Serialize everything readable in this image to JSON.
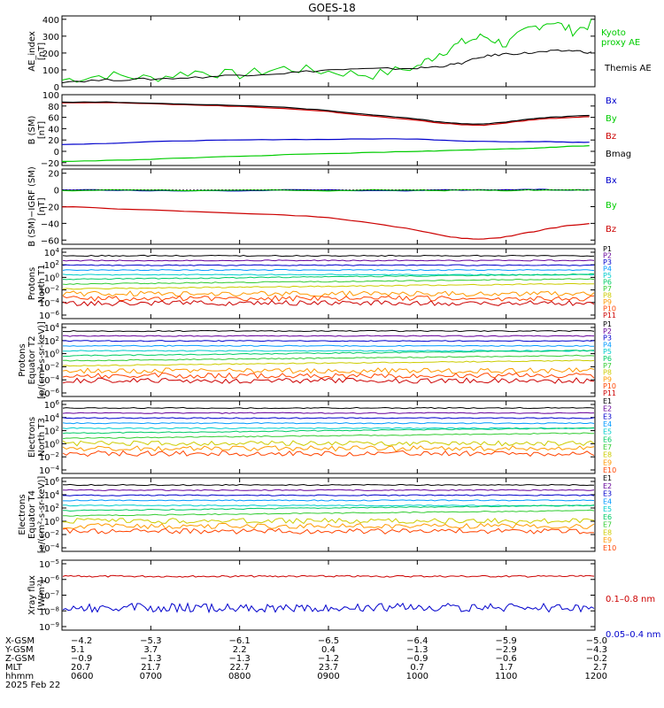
{
  "title": "GOES-18",
  "colors": {
    "black": "#000000",
    "red": "#cc0000",
    "green": "#00cc00",
    "blue": "#0000cc",
    "P": [
      "#000000",
      "#660099",
      "#0000cc",
      "#0099ff",
      "#00cccc",
      "#00cc66",
      "#33cc33",
      "#cccc00",
      "#ff9900",
      "#ff4400",
      "#cc0000"
    ]
  },
  "chart_data": [
    {
      "type": "line",
      "ylabel": "AE_index [nT]",
      "yticks": [
        "400",
        "300",
        "200",
        "100",
        "0"
      ],
      "ylim": [
        0,
        420
      ],
      "series": [
        {
          "name": "Kyoto proxy AE",
          "color": "green",
          "x": [
            "0600",
            "0630",
            "0700",
            "0730",
            "0800",
            "0830",
            "0900",
            "0930",
            "1000",
            "1015",
            "1030",
            "1045",
            "1100",
            "1115",
            "1130",
            "1145",
            "1200"
          ],
          "y": [
            40,
            70,
            50,
            90,
            70,
            110,
            90,
            70,
            120,
            200,
            260,
            300,
            250,
            340,
            390,
            330,
            380
          ]
        },
        {
          "name": "Themis AE",
          "color": "black",
          "x": [
            "0600",
            "0630",
            "0700",
            "0730",
            "0800",
            "0830",
            "0900",
            "0930",
            "1000",
            "1015",
            "1030",
            "1045",
            "1100",
            "1115",
            "1130",
            "1145",
            "1200"
          ],
          "y": [
            30,
            40,
            45,
            55,
            70,
            80,
            100,
            105,
            110,
            120,
            140,
            180,
            195,
            200,
            210,
            215,
            200
          ]
        }
      ]
    },
    {
      "type": "line",
      "ylabel": "B (SM) [nT]",
      "yticks": [
        "100",
        "80",
        "60",
        "40",
        "20",
        "0",
        "−20"
      ],
      "ylim": [
        -25,
        100
      ],
      "series": [
        {
          "name": "Bx",
          "color": "blue",
          "y": [
            12,
            14,
            17,
            19,
            20,
            21,
            21,
            22,
            22,
            20,
            18,
            18,
            17,
            17,
            17,
            16,
            16
          ]
        },
        {
          "name": "By",
          "color": "green",
          "y": [
            -18,
            -16,
            -14,
            -11,
            -9,
            -6,
            -4,
            -2,
            0,
            1,
            2,
            3,
            4,
            5,
            7,
            9,
            10
          ]
        },
        {
          "name": "Bz",
          "color": "red",
          "y": [
            86,
            86,
            84,
            82,
            79,
            76,
            70,
            62,
            55,
            50,
            47,
            46,
            50,
            55,
            58,
            60,
            62
          ]
        },
        {
          "name": "Bmag",
          "color": "black",
          "y": [
            87,
            87,
            85,
            83,
            81,
            78,
            72,
            64,
            57,
            52,
            49,
            48,
            52,
            57,
            60,
            62,
            64
          ]
        }
      ]
    },
    {
      "type": "line",
      "ylabel": "B (SM)−IGRF (SM) [nT]",
      "yticks": [
        "20",
        "0",
        "−20",
        "−40",
        "−60"
      ],
      "ylim": [
        -65,
        25
      ],
      "series": [
        {
          "name": "Bx",
          "color": "blue",
          "y": [
            0,
            0,
            -1,
            -1,
            -1,
            0,
            0,
            -1,
            -1,
            0,
            0,
            0,
            0,
            1,
            0,
            0,
            0
          ]
        },
        {
          "name": "By",
          "color": "green",
          "y": [
            -1,
            0,
            0,
            -1,
            0,
            0,
            -1,
            0,
            0,
            -1,
            0,
            0,
            -1,
            0,
            0,
            0,
            0
          ]
        },
        {
          "name": "Bz",
          "color": "red",
          "y": [
            -20,
            -22,
            -24,
            -26,
            -28,
            -30,
            -33,
            -40,
            -48,
            -54,
            -58,
            -59,
            -56,
            -51,
            -46,
            -42,
            -40
          ]
        }
      ]
    },
    {
      "type": "line",
      "log": true,
      "ylabel": "Protons North T1",
      "yticks": [
        "10^4",
        "10^2",
        "10^0",
        "10^-2",
        "10^-4",
        "10^-6"
      ],
      "series_labels": [
        "P1",
        "P2",
        "P3",
        "P4",
        "P5",
        "P6",
        "P7",
        "P8",
        "P9",
        "P10",
        "P11"
      ]
    },
    {
      "type": "line",
      "log": true,
      "ylabel": "Protons Equator T2 [p/(cm²-s-sr-keV)]",
      "yticks": [
        "10^4",
        "10^2",
        "10^0",
        "10^-2",
        "10^-4",
        "10^-6"
      ],
      "series_labels": [
        "P1",
        "P2",
        "P3",
        "P4",
        "P5",
        "P6",
        "P7",
        "P8",
        "P9",
        "P10",
        "P11"
      ]
    },
    {
      "type": "line",
      "log": true,
      "ylabel": "Electrons North T3",
      "yticks": [
        "10^6",
        "10^4",
        "10^2",
        "10^0",
        "10^-2",
        "10^-4"
      ],
      "series_labels": [
        "E1",
        "E2",
        "E3",
        "E4",
        "E5",
        "E6",
        "E7",
        "E8",
        "E9",
        "E10"
      ]
    },
    {
      "type": "line",
      "log": true,
      "ylabel": "Electrons Equator T4 [e/(cm²-s-sr-keV)]",
      "yticks": [
        "10^6",
        "10^4",
        "10^2",
        "10^0",
        "10^-2",
        "10^-4"
      ],
      "series_labels": [
        "E1",
        "E2",
        "E3",
        "E4",
        "E5",
        "E6",
        "E7",
        "E8",
        "E9",
        "E10"
      ]
    },
    {
      "type": "line",
      "log": true,
      "ylabel": "Xray flux [W/m²]",
      "yticks": [
        "10^-5",
        "10^-6",
        "10^-7",
        "10^-8",
        "10^-9"
      ],
      "series": [
        {
          "name": "0.1–0.8 nm",
          "color": "red",
          "log10": -5.8
        },
        {
          "name": "0.05–0.4 nm",
          "color": "blue",
          "log10": -7.8
        }
      ]
    }
  ],
  "xaxis": {
    "labels": [
      "X-GSM",
      "Y-GSM",
      "Z-GSM",
      "MLT",
      "hhmm"
    ],
    "date": "2025 Feb 22",
    "cols": [
      {
        "x": "−4.2",
        "y": "5.1",
        "z": "−0.9",
        "mlt": "20.7",
        "hhmm": "0600"
      },
      {
        "x": "−5.3",
        "y": "3.7",
        "z": "−1.3",
        "mlt": "21.7",
        "hhmm": "0700"
      },
      {
        "x": "−6.1",
        "y": "2.2",
        "z": "−1.3",
        "mlt": "22.7",
        "hhmm": "0800"
      },
      {
        "x": "−6.5",
        "y": "0.4",
        "z": "−1.2",
        "mlt": "23.7",
        "hhmm": "0900"
      },
      {
        "x": "−6.4",
        "y": "−1.3",
        "z": "−0.9",
        "mlt": "0.7",
        "hhmm": "1000"
      },
      {
        "x": "−5.9",
        "y": "−2.9",
        "z": "−0.6",
        "mlt": "1.7",
        "hhmm": "1100"
      },
      {
        "x": "−5.0",
        "y": "−4.3",
        "z": "−0.2",
        "mlt": "2.7",
        "hhmm": "1200"
      }
    ]
  }
}
